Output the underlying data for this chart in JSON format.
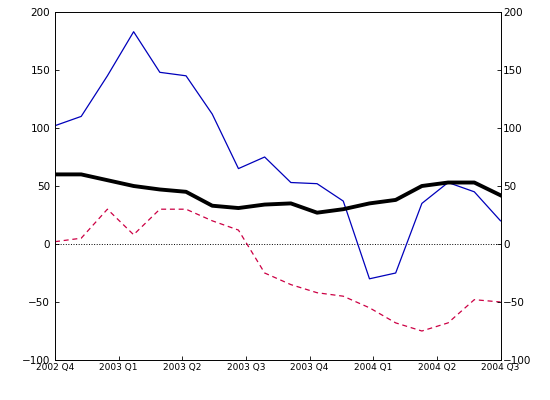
{
  "x_labels": [
    "2002 Q4",
    "2003 Q1",
    "2003 Q2",
    "2003 Q3",
    "2003 Q4",
    "2004 Q1",
    "2004 Q2",
    "2004 Q3"
  ],
  "blue_line": [
    102,
    110,
    145,
    183,
    148,
    145,
    112,
    65,
    75,
    53,
    52,
    37,
    -30,
    -25,
    35,
    53,
    45,
    20
  ],
  "black_line": [
    60,
    60,
    55,
    50,
    47,
    45,
    33,
    31,
    34,
    35,
    27,
    30,
    35,
    38,
    50,
    53,
    53,
    42
  ],
  "red_dashed": [
    2,
    5,
    30,
    8,
    30,
    30,
    20,
    12,
    -25,
    -35,
    -42,
    -45,
    -55,
    -68,
    -75,
    -68,
    -48,
    -50
  ],
  "ylim": [
    -100,
    200
  ],
  "yticks": [
    -100,
    -50,
    0,
    50,
    100,
    150,
    200
  ],
  "blue_color": "#0000bb",
  "black_color": "#000000",
  "red_color": "#cc0044",
  "bg_color": "#ffffff"
}
